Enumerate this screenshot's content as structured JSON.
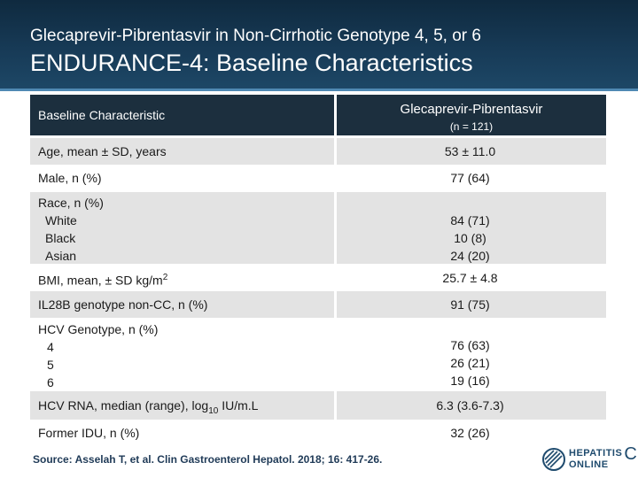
{
  "header": {
    "subtitle": "Glecaprevir-Pibrentasvir in Non-Cirrhotic Genotype 4, 5, or 6",
    "title": "ENDURANCE-4: Baseline Characteristics"
  },
  "table": {
    "col1_header": "Baseline Characteristic",
    "col2_header": "Glecaprevir-Pibrentasvir",
    "col2_subheader": "(n = 121)",
    "rows": [
      {
        "label": "Age, mean ± SD, years",
        "value": "53 ± 11.0"
      },
      {
        "label": "Male, n (%)",
        "value": "77 (64)"
      },
      {
        "label": "Race, n (%)",
        "sub": [
          "White",
          "Black",
          "Asian"
        ],
        "values": [
          "84 (71)",
          "10 (8)",
          "24 (20)"
        ]
      },
      {
        "label_pre": "BMI, mean, ± SD kg/m",
        "label_sup": "2",
        "value": "25.7 ± 4.8"
      },
      {
        "label": "IL28B genotype non-CC, n (%)",
        "value": "91 (75)"
      },
      {
        "label": "HCV Genotype, n (%)",
        "sub": [
          "4",
          "5",
          "6"
        ],
        "values": [
          "76 (63)",
          "26 (21)",
          "19 (16)"
        ]
      },
      {
        "label_pre": "HCV RNA, median (range), log",
        "label_sub": "10",
        "label_post": " IU/m.L",
        "value": "6.3 (3.6-7.3)"
      },
      {
        "label": "Former IDU, n (%)",
        "value": "32 (26)"
      }
    ]
  },
  "footer": {
    "source": "Source: Asselah T, et al.  Clin Gastroenterol Hepatol. 2018; 16: 417-26.",
    "logo_line1": "HEPATITIS",
    "logo_line2": "ONLINE",
    "logo_c": "C",
    "logo_icon": "hepatitis-c-online-logo-icon"
  },
  "colors": {
    "header_bg": "#173a56",
    "table_header_bg": "#1c2f3e",
    "row_shade": "#e3e3e3",
    "source_text": "#1f3a57"
  }
}
